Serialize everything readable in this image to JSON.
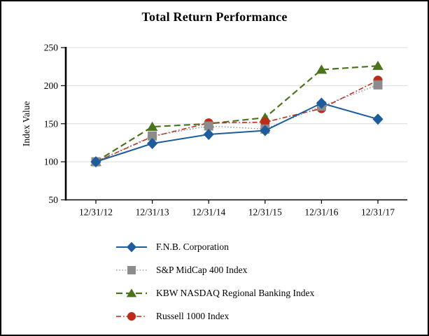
{
  "chart_data": {
    "type": "line",
    "title": "Total Return Performance",
    "xlabel": "",
    "ylabel": "Index Value",
    "categories": [
      "12/31/12",
      "12/31/13",
      "12/31/14",
      "12/31/15",
      "12/31/16",
      "12/31/17"
    ],
    "ylim": [
      50,
      250
    ],
    "yticks": [
      50,
      100,
      150,
      200,
      250
    ],
    "grid": true,
    "legend_position": "bottom-left",
    "axis_color": "#000000",
    "gridline_color": "#dcdcdc",
    "series": [
      {
        "name": "F.N.B. Corporation",
        "marker": "diamond",
        "line_style": "solid",
        "color": "#1e5c9c",
        "values": [
          100,
          124,
          136,
          141,
          177,
          156
        ]
      },
      {
        "name": "S&P MidCap 400 Index",
        "marker": "square",
        "line_style": "dotted",
        "color": "#8c8c8c",
        "values": [
          100,
          134,
          147,
          143,
          173,
          201
        ]
      },
      {
        "name": "KBW NASDAQ Regional Banking Index",
        "marker": "triangle",
        "line_style": "dashed",
        "color": "#4a741c",
        "values": [
          100,
          146,
          150,
          158,
          221,
          226
        ]
      },
      {
        "name": "Russell 1000 Index",
        "marker": "circle",
        "line_style": "dash-dot",
        "color": "#bf2b1a",
        "values": [
          100,
          133,
          151,
          152,
          170,
          207
        ]
      }
    ]
  }
}
